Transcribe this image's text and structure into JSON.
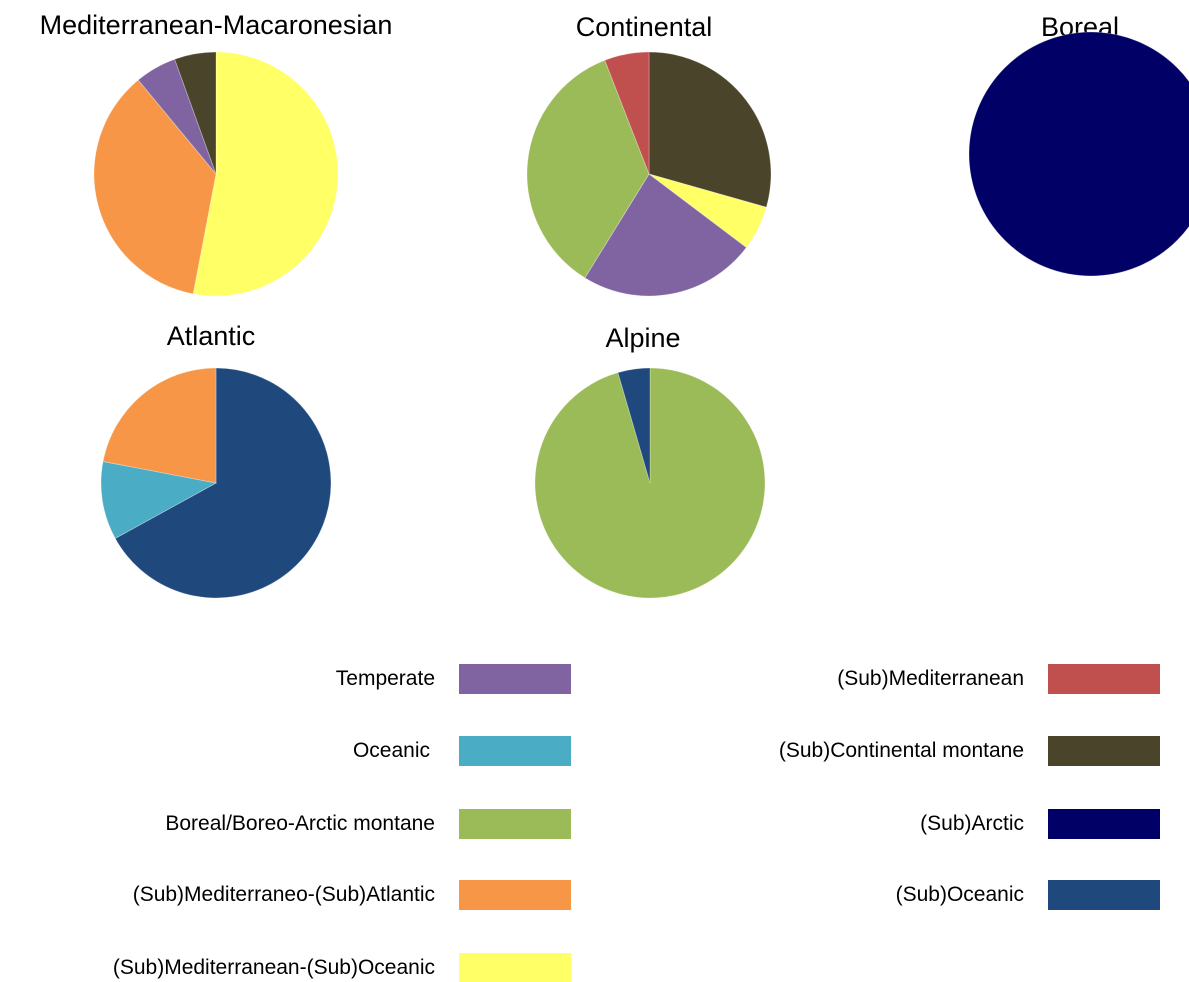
{
  "categories": [
    {
      "key": "temperate",
      "label": "Temperate",
      "color": "#8064A2"
    },
    {
      "key": "oceanic",
      "label": "Oceanic",
      "color": "#4BACC6"
    },
    {
      "key": "boreal_montane",
      "label": "Boreal/Boreo-Arctic montane",
      "color": "#9BBB59"
    },
    {
      "key": "submed_atlantic",
      "label": "(Sub)Mediterraneo-(Sub)Atlantic",
      "color": "#F79646"
    },
    {
      "key": "submed_oceanic",
      "label": "(Sub)Mediterranean-(Sub)Oceanic",
      "color": "#FFFF66"
    },
    {
      "key": "submediterranean",
      "label": "(Sub)Mediterranean",
      "color": "#C0504D"
    },
    {
      "key": "subcontinental_montane",
      "label": "(Sub)Continental montane",
      "color": "#4A452A"
    },
    {
      "key": "subarctic",
      "label": "(Sub)Arctic",
      "color": "#000066"
    },
    {
      "key": "suboceanic",
      "label": "(Sub)Oceanic",
      "color": "#1F497D"
    }
  ],
  "chart_data": [
    {
      "type": "pie",
      "title": "Mediterranean-Macaronesian",
      "slices": [
        {
          "category": "submed_oceanic",
          "value": 53
        },
        {
          "category": "submed_atlantic",
          "value": 36
        },
        {
          "category": "temperate",
          "value": 5.5
        },
        {
          "category": "subcontinental_montane",
          "value": 5.5
        }
      ]
    },
    {
      "type": "pie",
      "title": "Continental",
      "slices": [
        {
          "category": "subcontinental_montane",
          "value": 29.4
        },
        {
          "category": "submed_oceanic",
          "value": 5.9
        },
        {
          "category": "temperate",
          "value": 23.5
        },
        {
          "category": "boreal_montane",
          "value": 35.3
        },
        {
          "category": "submediterranean",
          "value": 5.9
        }
      ]
    },
    {
      "type": "pie",
      "title": "Boreal",
      "slices": [
        {
          "category": "subarctic",
          "value": 100
        }
      ]
    },
    {
      "type": "pie",
      "title": "Atlantic",
      "slices": [
        {
          "category": "suboceanic",
          "value": 67
        },
        {
          "category": "oceanic",
          "value": 11
        },
        {
          "category": "submed_atlantic",
          "value": 22
        }
      ]
    },
    {
      "type": "pie",
      "title": "Alpine",
      "slices": [
        {
          "category": "boreal_montane",
          "value": 95.5
        },
        {
          "category": "suboceanic",
          "value": 4.5
        }
      ]
    }
  ]
}
